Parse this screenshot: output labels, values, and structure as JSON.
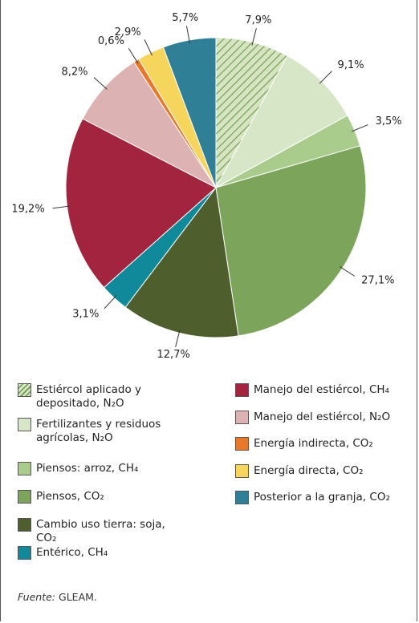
{
  "chart_data": {
    "type": "pie",
    "categories": [
      "Estiércol aplicado y depositado, N₂O",
      "Fertilizantes y residuos agrícolas, N₂O",
      "Piensos: arroz, CH₄",
      "Piensos, CO₂",
      "Cambio uso tierra: soja, CO₂",
      "Entérico, CH₄",
      "Manejo del estiércol, CH₄",
      "Manejo del estiércol, N₂O",
      "Energía indirecta, CO₂",
      "Energía directa, CO₂",
      "Posterior a la granja, CO₂"
    ],
    "values": [
      7.9,
      9.1,
      3.5,
      27.1,
      12.7,
      3.1,
      19.2,
      8.2,
      0.6,
      2.9,
      5.7
    ],
    "value_labels": [
      "7,9%",
      "9,1%",
      "3,5%",
      "27,1%",
      "12,7%",
      "3,1%",
      "19,2%",
      "8,2%",
      "0,6%",
      "2,9%",
      "5,7%"
    ],
    "colors": [
      "#d6e4c2",
      "#d7e6c6",
      "#a9cc8d",
      "#7ca45b",
      "#4e5f2d",
      "#10899a",
      "#a2243f",
      "#dcb2b3",
      "#e8782a",
      "#f6d55c",
      "#2f7f96"
    ],
    "hatch": [
      true,
      false,
      false,
      false,
      false,
      false,
      false,
      false,
      false,
      false,
      false
    ],
    "legend": true,
    "source_label": "Fuente:",
    "source": "GLEAM."
  }
}
